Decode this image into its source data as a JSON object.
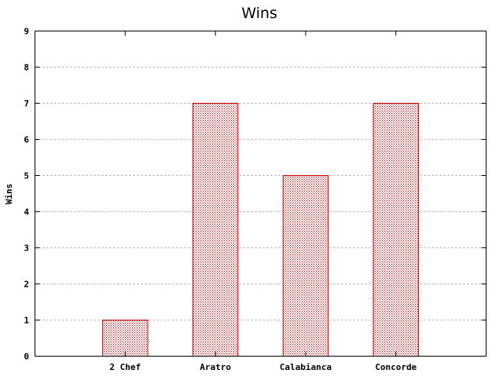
{
  "chart_data": {
    "type": "bar",
    "title": "Wins",
    "xlabel": "",
    "ylabel": "Wins",
    "categories": [
      "2 Chef",
      "Aratro",
      "Calabianca",
      "Concorde"
    ],
    "values": [
      1,
      7,
      5,
      7
    ],
    "ylim": [
      0,
      9
    ],
    "yticks": [
      "0",
      "1",
      "2",
      "3",
      "4",
      "5",
      "6",
      "7",
      "8",
      "9"
    ],
    "grid": true,
    "colors": {
      "bar_stroke": "#cc0000",
      "bar_pattern": "#cc0000",
      "grid": "#a0a0a0"
    }
  }
}
